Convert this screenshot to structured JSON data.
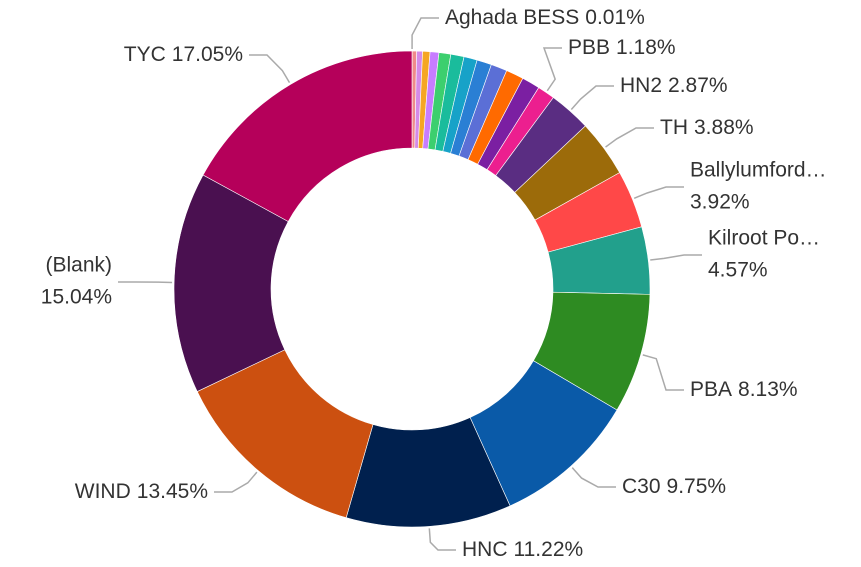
{
  "chart_data": {
    "type": "pie",
    "donut": true,
    "categories": [
      "Aghada BESS",
      null,
      null,
      null,
      null,
      null,
      null,
      null,
      null,
      null,
      null,
      null,
      "PBB",
      "HN2",
      "TH",
      "Ballylumford…",
      "Kilroot Po…",
      "PBA",
      "C30",
      "HNC",
      "WIND",
      "(Blank)",
      "TYC"
    ],
    "values": [
      0.01,
      0.3,
      0.4,
      0.5,
      0.6,
      0.8,
      0.9,
      0.9,
      1.0,
      1.1,
      1.2,
      1.23,
      1.18,
      2.87,
      3.88,
      3.92,
      4.57,
      8.13,
      9.75,
      11.22,
      13.45,
      15.04,
      17.05
    ],
    "value_labels": [
      "0.01%",
      null,
      null,
      null,
      null,
      null,
      null,
      null,
      null,
      null,
      null,
      null,
      "1.18%",
      "2.87%",
      "3.88%",
      "3.92%",
      "4.57%",
      "8.13%",
      "9.75%",
      "11.22%",
      "13.45%",
      "15.04%",
      "17.05%"
    ],
    "colors": [
      "#8c8c8c",
      "#f08a8a",
      "#d58ae8",
      "#f5a623",
      "#c77dff",
      "#3ccf6e",
      "#1abc9c",
      "#17a2c8",
      "#2a7fd4",
      "#5b6fd6",
      "#ff6a00",
      "#7b1fa2",
      "#ec1f8f",
      "#5a2d82",
      "#9c6b0a",
      "#ff4848",
      "#22a08c",
      "#2e8b22",
      "#0a5aa8",
      "#00204e",
      "#cc5010",
      "#4a1050",
      "#b5005a"
    ]
  }
}
